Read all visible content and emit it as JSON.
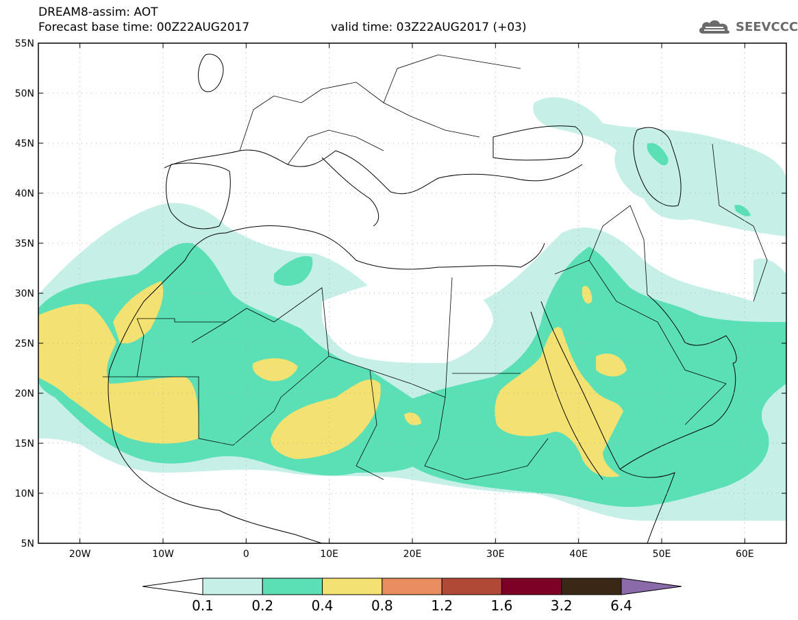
{
  "header": {
    "title": "DREAM8-assim: AOT",
    "base_time": "Forecast base time: 00Z22AUG2017",
    "valid_time": "valid time: 03Z22AUG2017 (+03)",
    "logo_text": "SEEVCCC"
  },
  "map": {
    "lon_range": [
      -25,
      65
    ],
    "lat_range": [
      5,
      55
    ],
    "lat_ticks": [
      "5N",
      "10N",
      "15N",
      "20N",
      "25N",
      "30N",
      "35N",
      "40N",
      "45N",
      "50N",
      "55N"
    ],
    "lon_ticks": [
      "20W",
      "10W",
      "0",
      "10E",
      "20E",
      "30E",
      "40E",
      "50E",
      "60E"
    ],
    "grid": true
  },
  "colorbar": {
    "labels": [
      "0.1",
      "0.2",
      "0.4",
      "0.8",
      "1.2",
      "1.6",
      "3.2",
      "6.4"
    ],
    "colors": [
      "#ffffff",
      "#c6efe8",
      "#5be0b6",
      "#f3e172",
      "#e88e60",
      "#b04a36",
      "#7d0027",
      "#3b2716",
      "#8a6aa8"
    ]
  }
}
